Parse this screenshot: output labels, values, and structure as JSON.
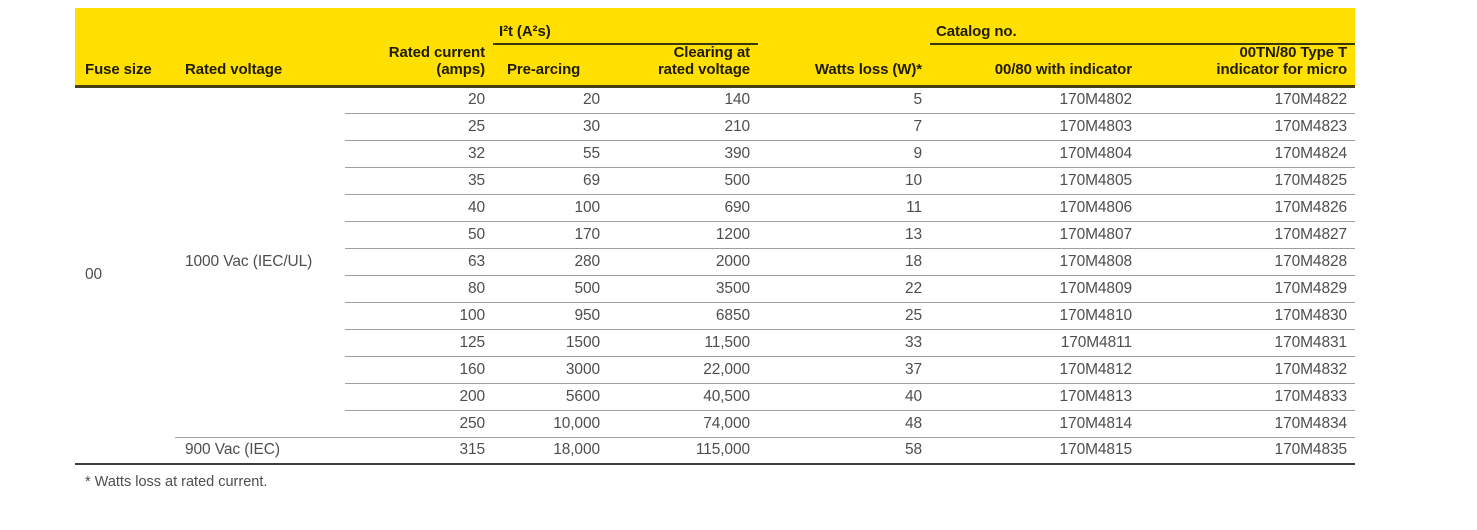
{
  "table": {
    "group_headers": {
      "i2t": "I²t (A²s)",
      "catalog": "Catalog no."
    },
    "columns": {
      "fuse_size": "Fuse size",
      "rated_voltage": "Rated voltage",
      "rated_current": {
        "line1": "Rated current",
        "line2": "(amps)"
      },
      "pre_arcing": "Pre-arcing",
      "clearing": {
        "line1": "Clearing at",
        "line2": "rated voltage"
      },
      "watts_loss": "Watts loss (W)*",
      "catalog_0080": "00/80 with indicator",
      "catalog_00tn80": {
        "line1": "00TN/80 Type T",
        "line2": "indicator for micro"
      }
    },
    "fuse_size_value": "00",
    "voltage_groups": [
      {
        "voltage": "1000 Vac (IEC/UL)",
        "row_count": 13
      },
      {
        "voltage": "900 Vac (IEC)",
        "row_count": 1
      }
    ],
    "rows": [
      {
        "rated_current": "20",
        "pre_arcing": "20",
        "clearing": "140",
        "watts_loss": "5",
        "catalog_0080": "170M4802",
        "catalog_00tn80": "170M4822"
      },
      {
        "rated_current": "25",
        "pre_arcing": "30",
        "clearing": "210",
        "watts_loss": "7",
        "catalog_0080": "170M4803",
        "catalog_00tn80": "170M4823"
      },
      {
        "rated_current": "32",
        "pre_arcing": "55",
        "clearing": "390",
        "watts_loss": "9",
        "catalog_0080": "170M4804",
        "catalog_00tn80": "170M4824"
      },
      {
        "rated_current": "35",
        "pre_arcing": "69",
        "clearing": "500",
        "watts_loss": "10",
        "catalog_0080": "170M4805",
        "catalog_00tn80": "170M4825"
      },
      {
        "rated_current": "40",
        "pre_arcing": "100",
        "clearing": "690",
        "watts_loss": "11",
        "catalog_0080": "170M4806",
        "catalog_00tn80": "170M4826"
      },
      {
        "rated_current": "50",
        "pre_arcing": "170",
        "clearing": "1200",
        "watts_loss": "13",
        "catalog_0080": "170M4807",
        "catalog_00tn80": "170M4827"
      },
      {
        "rated_current": "63",
        "pre_arcing": "280",
        "clearing": "2000",
        "watts_loss": "18",
        "catalog_0080": "170M4808",
        "catalog_00tn80": "170M4828"
      },
      {
        "rated_current": "80",
        "pre_arcing": "500",
        "clearing": "3500",
        "watts_loss": "22",
        "catalog_0080": "170M4809",
        "catalog_00tn80": "170M4829"
      },
      {
        "rated_current": "100",
        "pre_arcing": "950",
        "clearing": "6850",
        "watts_loss": "25",
        "catalog_0080": "170M4810",
        "catalog_00tn80": "170M4830"
      },
      {
        "rated_current": "125",
        "pre_arcing": "1500",
        "clearing": "11,500",
        "watts_loss": "33",
        "catalog_0080": "170M4811",
        "catalog_00tn80": "170M4831"
      },
      {
        "rated_current": "160",
        "pre_arcing": "3000",
        "clearing": "22,000",
        "watts_loss": "37",
        "catalog_0080": "170M4812",
        "catalog_00tn80": "170M4832"
      },
      {
        "rated_current": "200",
        "pre_arcing": "5600",
        "clearing": "40,500",
        "watts_loss": "40",
        "catalog_0080": "170M4813",
        "catalog_00tn80": "170M4833"
      },
      {
        "rated_current": "250",
        "pre_arcing": "10,000",
        "clearing": "74,000",
        "watts_loss": "48",
        "catalog_0080": "170M4814",
        "catalog_00tn80": "170M4834"
      },
      {
        "rated_current": "315",
        "pre_arcing": "18,000",
        "clearing": "115,000",
        "watts_loss": "58",
        "catalog_0080": "170M4815",
        "catalog_00tn80": "170M4835"
      }
    ]
  },
  "footnote": "* Watts loss at rated current.",
  "colors": {
    "header_bg": "#ffe000",
    "header_text": "#201c00",
    "body_text": "#4e4e4e",
    "group_underline": "#3a370c",
    "header_rule": "#45410f",
    "row_separator": "#9e9e9e",
    "table_bottom_border": "#3e3e3e"
  }
}
